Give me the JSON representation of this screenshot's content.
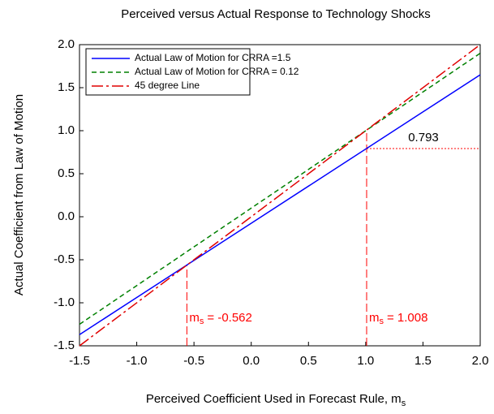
{
  "chart_data": {
    "type": "line",
    "title": "Perceived versus Actual Response to Technology Shocks",
    "xlabel": "Perceived Coefficient Used in Forecast Rule, m",
    "xlabel_subscript": "s",
    "ylabel": "Actual Coefficient from Law of Motion",
    "xlim": [
      -1.5,
      2.0
    ],
    "ylim": [
      -1.5,
      2.0
    ],
    "xticks": [
      {
        "value": -1.5,
        "label": "-1.5"
      },
      {
        "value": -1,
        "label": "-1.0"
      },
      {
        "value": -0.5,
        "label": "-0.5"
      },
      {
        "value": 0,
        "label": "0.0"
      },
      {
        "value": 0.5,
        "label": "0.5"
      },
      {
        "value": 1,
        "label": "1.0"
      },
      {
        "value": 1.5,
        "label": "1.5"
      },
      {
        "value": 2,
        "label": "2.0"
      }
    ],
    "yticks": [
      {
        "value": -1.5,
        "label": "-1.5"
      },
      {
        "value": -1,
        "label": "-1.0"
      },
      {
        "value": -0.5,
        "label": "-0.5"
      },
      {
        "value": 0,
        "label": "0.0"
      },
      {
        "value": 0.5,
        "label": "0.5"
      },
      {
        "value": 1,
        "label": "1.0"
      },
      {
        "value": 1.5,
        "label": "1.5"
      },
      {
        "value": 2,
        "label": "2.0"
      }
    ],
    "legend": "upper left",
    "series": [
      {
        "name": "Actual Law of Motion for CRRA =1.5",
        "color": "#0000ff",
        "dash": "none",
        "x": [
          -1.5,
          2.0
        ],
        "values": [
          -1.37,
          1.65
        ]
      },
      {
        "name": "Actual Law of Motion for CRRA = 0.12",
        "color": "#008000",
        "dash": "6,4",
        "x": [
          -1.5,
          2.0
        ],
        "values": [
          -1.25,
          1.9
        ]
      },
      {
        "name": "45 degree Line",
        "color": "#e00000",
        "dash": "14,4,3,4",
        "x": [
          -1.5,
          2.0
        ],
        "values": [
          -1.5,
          2.0
        ]
      }
    ],
    "marker_color": "#ff0000",
    "vertical_markers": [
      {
        "x": -0.562,
        "y": -0.562,
        "symbol": "m",
        "subscript": "s",
        "label": "=  -0.562"
      },
      {
        "x": 1.008,
        "y": 1.008,
        "symbol": "m",
        "subscript": "s",
        "label": "=  1.008"
      }
    ],
    "horizontal_marker": {
      "x": 1.008,
      "y": 0.793,
      "label": "0.793"
    }
  }
}
